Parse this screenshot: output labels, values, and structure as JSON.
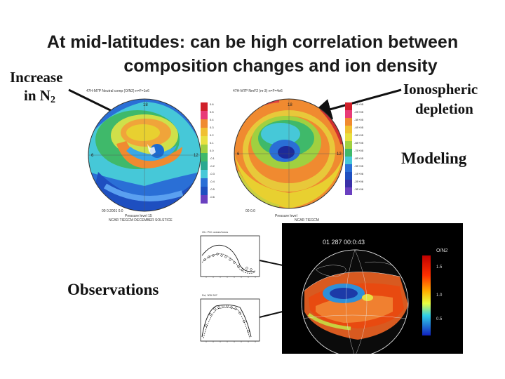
{
  "title": {
    "line1": "At mid-latitudes: can be high correlation between",
    "line2": "composition changes and ion density"
  },
  "labels": {
    "increase": "Increase",
    "in_n": "in N",
    "n_sub": "2",
    "ionospheric": "Ionospheric",
    "depletion": "depletion",
    "modeling": "Modeling",
    "observations": "Observations"
  },
  "map_left": {
    "header": "47H-M7P Neutral comp (O/N2) n=F=1e6",
    "footer1": "00  0.2001  0.0 ",
    "footer2": "Pressure level 15",
    "footer3": "NCAR TIEGCM DECEMBER SOLSTICE",
    "scale": [
      "0.6",
      "0.5",
      "0.4",
      "0.3",
      "0.2",
      "0.1",
      "0.0",
      "-0.1",
      "-0.2",
      "-0.3",
      "-0.4",
      "-0.5",
      "-0.6"
    ]
  },
  "map_right": {
    "header": "47H-M7P NmF2 (m-3) n=F=4e6",
    "footer1": "00  0.0  ",
    "footer2": "Pressure level",
    "footer3": "NCAR TIEGCM",
    "scale": [
      "-1E+05",
      "-2E+05",
      "-3E+05",
      "-4E+05",
      "-5E+05",
      "-6E+05",
      "-7E+05",
      "-8E+05",
      "-9E+05",
      "-1E+06",
      "-2E+06",
      "-3E+06"
    ]
  },
  "obs_panel": {
    "stamp": "01 287 00:0:43",
    "legend_title": "O/N2",
    "scale": [
      "1.5",
      "1.0",
      "0.5"
    ],
    "plot1_title": "Ot= PtC ocean/Ionos",
    "plot2_title": "Dd, 305 287"
  }
}
